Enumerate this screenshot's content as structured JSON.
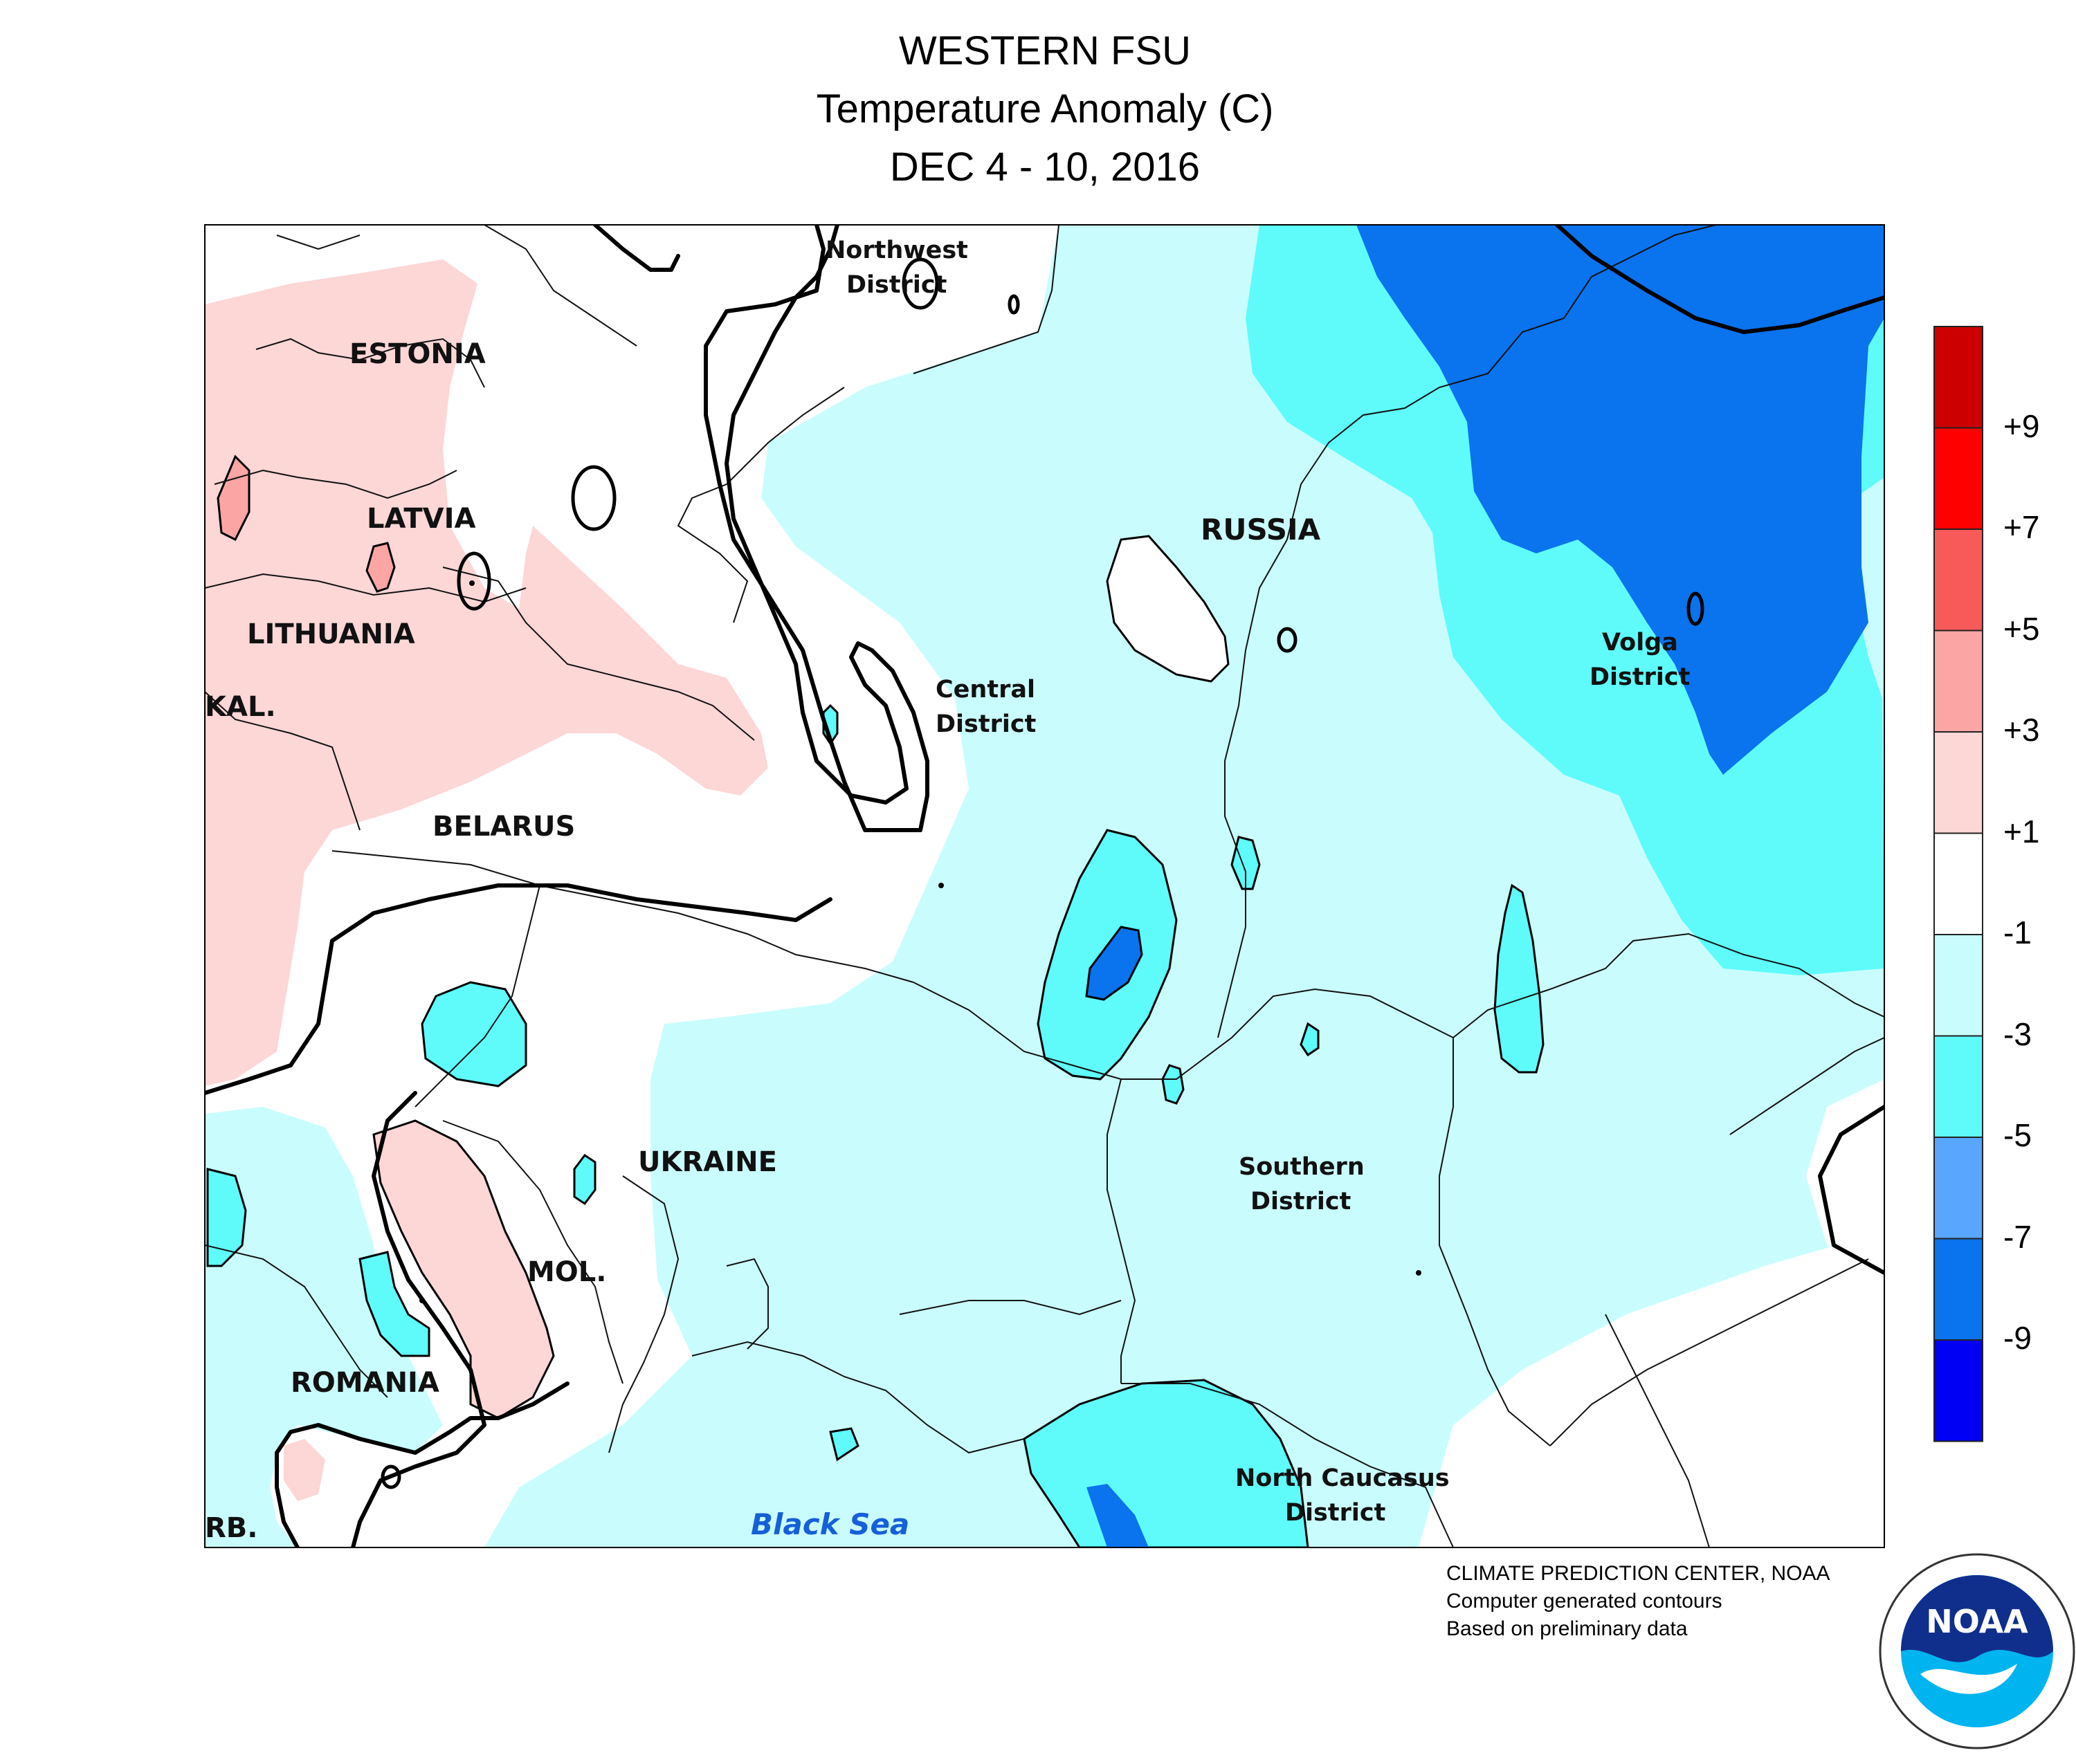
{
  "title": {
    "line1": "WESTERN FSU",
    "line2": "Temperature Anomaly (C)",
    "line3": "DEC 4 - 10, 2016"
  },
  "map": {
    "labels": {
      "estonia": "ESTONIA",
      "latvia": "LATVIA",
      "lithuania": "LITHUANIA",
      "kaliningrad": "KAL.",
      "belarus": "BELARUS",
      "ukraine": "UKRAINE",
      "moldova": "MOL.",
      "romania": "ROMANIA",
      "serbia": "RB.",
      "russia": "RUSSIA",
      "northwest_1": "Northwest",
      "northwest_2": "District",
      "central_1": "Central",
      "central_2": "District",
      "volga_1": "Volga",
      "volga_2": "District",
      "southern_1": "Southern",
      "southern_2": "District",
      "caucasus_1": "North Caucasus",
      "caucasus_2": "District",
      "black_sea": "Black Sea"
    },
    "colors": {
      "plus_1_3": "#fdd6d6",
      "plus_3_5": "#fba5a5",
      "plus_5_7": "#f85a5a",
      "plus_7_9": "#ff0000",
      "plus_9": "#cc0000",
      "near_zero": "#ffffff",
      "minus_1_3": "#c9fdfd",
      "minus_3_5": "#5ffbfb",
      "minus_5_7": "#58a6ff",
      "minus_7_9": "#0a73ee",
      "minus_9": "#0000f5",
      "black_sea_label": "#1560d8"
    }
  },
  "legend": {
    "ticks": [
      "+9",
      "+7",
      "+5",
      "+3",
      "+1",
      "-1",
      "-3",
      "-5",
      "-7",
      "-9"
    ],
    "colors": [
      "#cc0000",
      "#ff0000",
      "#f85a5a",
      "#fba5a5",
      "#fdd6d6",
      "#ffffff",
      "#c9fdfd",
      "#5ffbfb",
      "#58a6ff",
      "#0a73ee",
      "#0000f5"
    ]
  },
  "credits": {
    "line1": "CLIMATE PREDICTION CENTER, NOAA",
    "line2": "Computer generated contours",
    "line3": "Based on preliminary data"
  },
  "logo": {
    "text": "NOAA",
    "icon": "noaa-seal-icon"
  }
}
